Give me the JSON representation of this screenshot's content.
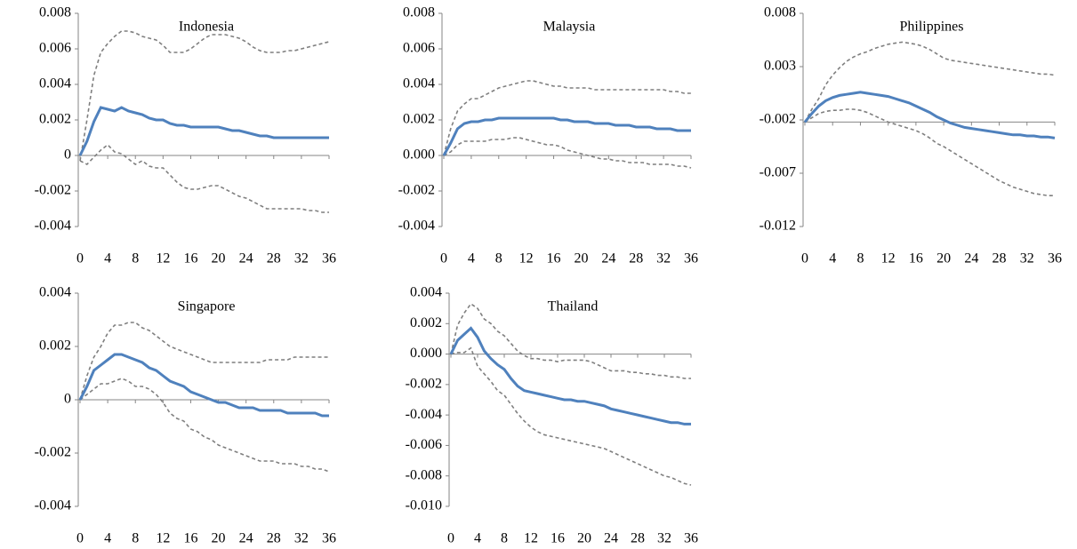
{
  "chart_data": [
    {
      "type": "line",
      "title": "Indonesia",
      "x": [
        0,
        1,
        2,
        3,
        4,
        5,
        6,
        7,
        8,
        9,
        10,
        11,
        12,
        13,
        14,
        15,
        16,
        17,
        18,
        19,
        20,
        21,
        22,
        23,
        24,
        25,
        26,
        27,
        28,
        29,
        30,
        31,
        32,
        33,
        34,
        35,
        36
      ],
      "xlim": [
        0,
        36
      ],
      "xticks": [
        0,
        4,
        8,
        12,
        16,
        20,
        24,
        28,
        32,
        36
      ],
      "ylim": [
        -0.004,
        0.008
      ],
      "yticks": [
        0.008,
        0.006,
        0.004,
        0.002,
        0,
        -0.002,
        -0.004
      ],
      "series": [
        {
          "color": "#7f7f7f",
          "line_style": "dashed",
          "values": [
            -0.0003,
            0.002,
            0.0045,
            0.0058,
            0.0063,
            0.0067,
            0.007,
            0.007,
            0.0069,
            0.0067,
            0.0066,
            0.0065,
            0.0062,
            0.0058,
            0.0058,
            0.0058,
            0.006,
            0.0063,
            0.0066,
            0.0068,
            0.0068,
            0.0068,
            0.0067,
            0.0066,
            0.0064,
            0.0061,
            0.0059,
            0.0058,
            0.0058,
            0.0058,
            0.0059,
            0.0059,
            0.006,
            0.0061,
            0.0062,
            0.0063,
            0.0064
          ]
        },
        {
          "color": "#7f7f7f",
          "line_style": "dashed",
          "values": [
            -0.0003,
            -0.0005,
            -0.0001,
            0.0003,
            0.0006,
            0.0002,
            0.0001,
            -0.0002,
            -0.0005,
            -0.0003,
            -0.0006,
            -0.0007,
            -0.0007,
            -0.0011,
            -0.0015,
            -0.0018,
            -0.0019,
            -0.0019,
            -0.0018,
            -0.0017,
            -0.0017,
            -0.0019,
            -0.0021,
            -0.0023,
            -0.0024,
            -0.0026,
            -0.0028,
            -0.003,
            -0.003,
            -0.003,
            -0.003,
            -0.003,
            -0.003,
            -0.0031,
            -0.0031,
            -0.0032,
            -0.0032
          ]
        },
        {
          "color": "#4f81bd",
          "line_style": "solid",
          "values": [
            0,
            0.0008,
            0.0019,
            0.0027,
            0.0026,
            0.0025,
            0.0027,
            0.0025,
            0.0024,
            0.0023,
            0.0021,
            0.002,
            0.002,
            0.0018,
            0.0017,
            0.0017,
            0.0016,
            0.0016,
            0.0016,
            0.0016,
            0.0016,
            0.0015,
            0.0014,
            0.0014,
            0.0013,
            0.0012,
            0.0011,
            0.0011,
            0.001,
            0.001,
            0.001,
            0.001,
            0.001,
            0.001,
            0.001,
            0.001,
            0.001
          ]
        }
      ]
    },
    {
      "type": "line",
      "title": "Malaysia",
      "x": [
        0,
        1,
        2,
        3,
        4,
        5,
        6,
        7,
        8,
        9,
        10,
        11,
        12,
        13,
        14,
        15,
        16,
        17,
        18,
        19,
        20,
        21,
        22,
        23,
        24,
        25,
        26,
        27,
        28,
        29,
        30,
        31,
        32,
        33,
        34,
        35,
        36
      ],
      "xlim": [
        0,
        36
      ],
      "xticks": [
        0,
        4,
        8,
        12,
        16,
        20,
        24,
        28,
        32,
        36
      ],
      "ylim": [
        -0.004,
        0.008
      ],
      "yticks": [
        0.008,
        0.006,
        0.004,
        0.002,
        {
          "value": 0,
          "label": "0.000"
        },
        -0.002,
        -0.004
      ],
      "series": [
        {
          "color": "#7f7f7f",
          "line_style": "dashed",
          "values": [
            0,
            0.0015,
            0.0025,
            0.0029,
            0.0032,
            0.0032,
            0.0034,
            0.0036,
            0.0038,
            0.0039,
            0.004,
            0.0041,
            0.0042,
            0.0042,
            0.0041,
            0.004,
            0.0039,
            0.0039,
            0.0038,
            0.0038,
            0.0038,
            0.0038,
            0.0037,
            0.0037,
            0.0037,
            0.0037,
            0.0037,
            0.0037,
            0.0037,
            0.0037,
            0.0037,
            0.0037,
            0.0037,
            0.0036,
            0.0036,
            0.0035,
            0.0035
          ]
        },
        {
          "color": "#7f7f7f",
          "line_style": "dashed",
          "values": [
            0,
            0.0002,
            0.0006,
            0.0008,
            0.0008,
            0.0008,
            0.0008,
            0.0009,
            0.0009,
            0.0009,
            0.001,
            0.001,
            0.0009,
            0.0008,
            0.0007,
            0.0006,
            0.0006,
            0.0005,
            0.0003,
            0.0002,
            0.0001,
            0,
            -0.0001,
            -0.0002,
            -0.0002,
            -0.0003,
            -0.0003,
            -0.0004,
            -0.0004,
            -0.0004,
            -0.0005,
            -0.0005,
            -0.0005,
            -0.0005,
            -0.0006,
            -0.0006,
            -0.0007
          ]
        },
        {
          "color": "#4f81bd",
          "line_style": "solid",
          "values": [
            0,
            0.0007,
            0.0015,
            0.0018,
            0.0019,
            0.0019,
            0.002,
            0.002,
            0.0021,
            0.0021,
            0.0021,
            0.0021,
            0.0021,
            0.0021,
            0.0021,
            0.0021,
            0.0021,
            0.002,
            0.002,
            0.0019,
            0.0019,
            0.0019,
            0.0018,
            0.0018,
            0.0018,
            0.0017,
            0.0017,
            0.0017,
            0.0016,
            0.0016,
            0.0016,
            0.0015,
            0.0015,
            0.0015,
            0.0014,
            0.0014,
            0.0014
          ]
        }
      ]
    },
    {
      "type": "line",
      "title": "Philippines",
      "x": [
        0,
        1,
        2,
        3,
        4,
        5,
        6,
        7,
        8,
        9,
        10,
        11,
        12,
        13,
        14,
        15,
        16,
        17,
        18,
        19,
        20,
        21,
        22,
        23,
        24,
        25,
        26,
        27,
        28,
        29,
        30,
        31,
        32,
        33,
        34,
        35,
        36
      ],
      "xlim": [
        0,
        36
      ],
      "xticks": [
        0,
        4,
        8,
        12,
        16,
        20,
        24,
        28,
        32,
        36
      ],
      "ylim": [
        -0.012,
        0.008
      ],
      "yticks": [
        0.008,
        0.003,
        -0.002,
        -0.007,
        -0.012
      ],
      "x_axis_crosses": -0.0022,
      "series": [
        {
          "color": "#7f7f7f",
          "line_style": "dashed",
          "values": [
            -0.0022,
            -0.001,
            0,
            0.0013,
            0.0022,
            0.0029,
            0.0035,
            0.0039,
            0.0042,
            0.0044,
            0.0047,
            0.0049,
            0.0051,
            0.0052,
            0.0053,
            0.0052,
            0.0051,
            0.0049,
            0.0046,
            0.0042,
            0.0038,
            0.0036,
            0.0035,
            0.0034,
            0.0033,
            0.0032,
            0.0031,
            0.003,
            0.0029,
            0.0028,
            0.0027,
            0.0026,
            0.0025,
            0.0024,
            0.0023,
            0.0023,
            0.0022
          ]
        },
        {
          "color": "#7f7f7f",
          "line_style": "dashed",
          "values": [
            -0.0022,
            -0.0018,
            -0.0014,
            -0.0012,
            -0.0011,
            -0.0011,
            -0.001,
            -0.001,
            -0.0011,
            -0.0013,
            -0.0016,
            -0.0019,
            -0.0022,
            -0.0024,
            -0.0026,
            -0.0028,
            -0.003,
            -0.0033,
            -0.0037,
            -0.0042,
            -0.0045,
            -0.0049,
            -0.0053,
            -0.0057,
            -0.0061,
            -0.0065,
            -0.0069,
            -0.0073,
            -0.0077,
            -0.008,
            -0.0083,
            -0.0085,
            -0.0087,
            -0.0089,
            -0.009,
            -0.0091,
            -0.0091
          ]
        },
        {
          "color": "#4f81bd",
          "line_style": "solid",
          "values": [
            -0.0022,
            -0.0014,
            -0.0007,
            -0.0002,
            0.0001,
            0.0003,
            0.0004,
            0.0005,
            0.0006,
            0.0005,
            0.0004,
            0.0003,
            0.0002,
            0,
            -0.0002,
            -0.0004,
            -0.0007,
            -0.001,
            -0.0013,
            -0.0017,
            -0.002,
            -0.0023,
            -0.0025,
            -0.0027,
            -0.0028,
            -0.0029,
            -0.003,
            -0.0031,
            -0.0032,
            -0.0033,
            -0.0034,
            -0.0034,
            -0.0035,
            -0.0035,
            -0.0036,
            -0.0036,
            -0.0037
          ]
        }
      ]
    },
    {
      "type": "line",
      "title": "Singapore",
      "x": [
        0,
        1,
        2,
        3,
        4,
        5,
        6,
        7,
        8,
        9,
        10,
        11,
        12,
        13,
        14,
        15,
        16,
        17,
        18,
        19,
        20,
        21,
        22,
        23,
        24,
        25,
        26,
        27,
        28,
        29,
        30,
        31,
        32,
        33,
        34,
        35,
        36
      ],
      "xlim": [
        0,
        36
      ],
      "xticks": [
        0,
        4,
        8,
        12,
        16,
        20,
        24,
        28,
        32,
        36
      ],
      "ylim": [
        -0.004,
        0.004
      ],
      "yticks": [
        0.004,
        0.002,
        0,
        -0.002,
        -0.004
      ],
      "series": [
        {
          "color": "#7f7f7f",
          "line_style": "dashed",
          "values": [
            0,
            0.0009,
            0.0016,
            0.002,
            0.0025,
            0.0028,
            0.0028,
            0.0029,
            0.0029,
            0.0027,
            0.0026,
            0.0024,
            0.0022,
            0.002,
            0.0019,
            0.0018,
            0.0017,
            0.0016,
            0.0015,
            0.0014,
            0.0014,
            0.0014,
            0.0014,
            0.0014,
            0.0014,
            0.0014,
            0.0014,
            0.0015,
            0.0015,
            0.0015,
            0.0015,
            0.0016,
            0.0016,
            0.0016,
            0.0016,
            0.0016,
            0.0016
          ]
        },
        {
          "color": "#7f7f7f",
          "line_style": "dashed",
          "values": [
            0,
            0.0002,
            0.0004,
            0.0006,
            0.0006,
            0.0007,
            0.0008,
            0.0007,
            0.0005,
            0.0005,
            0.0004,
            0.0002,
            -0.0001,
            -0.0005,
            -0.0007,
            -0.0008,
            -0.0011,
            -0.0012,
            -0.0014,
            -0.0015,
            -0.0017,
            -0.0018,
            -0.0019,
            -0.002,
            -0.0021,
            -0.0022,
            -0.0023,
            -0.0023,
            -0.0023,
            -0.0024,
            -0.0024,
            -0.0024,
            -0.0025,
            -0.0025,
            -0.0026,
            -0.0026,
            -0.0027
          ]
        },
        {
          "color": "#4f81bd",
          "line_style": "solid",
          "values": [
            0,
            0.0005,
            0.0011,
            0.0013,
            0.0015,
            0.0017,
            0.0017,
            0.0016,
            0.0015,
            0.0014,
            0.0012,
            0.0011,
            0.0009,
            0.0007,
            0.0006,
            0.0005,
            0.0003,
            0.0002,
            0.0001,
            0,
            -0.0001,
            -0.0001,
            -0.0002,
            -0.0003,
            -0.0003,
            -0.0003,
            -0.0004,
            -0.0004,
            -0.0004,
            -0.0004,
            -0.0005,
            -0.0005,
            -0.0005,
            -0.0005,
            -0.0005,
            -0.0006,
            -0.0006
          ]
        }
      ]
    },
    {
      "type": "line",
      "title": "Thailand",
      "x": [
        0,
        1,
        2,
        3,
        4,
        5,
        6,
        7,
        8,
        9,
        10,
        11,
        12,
        13,
        14,
        15,
        16,
        17,
        18,
        19,
        20,
        21,
        22,
        23,
        24,
        25,
        26,
        27,
        28,
        29,
        30,
        31,
        32,
        33,
        34,
        35,
        36
      ],
      "xlim": [
        0,
        36
      ],
      "xticks": [
        0,
        4,
        8,
        12,
        16,
        20,
        24,
        28,
        32,
        36
      ],
      "ylim": [
        -0.01,
        0.004
      ],
      "yticks": [
        0.004,
        0.002,
        {
          "value": 0,
          "label": "0.000"
        },
        -0.002,
        -0.004,
        -0.006,
        -0.008,
        {
          "value": -0.01,
          "label": "-0.010"
        }
      ],
      "series": [
        {
          "color": "#7f7f7f",
          "line_style": "dashed",
          "values": [
            0,
            0.0019,
            0.0027,
            0.0033,
            0.003,
            0.0023,
            0.002,
            0.0015,
            0.0012,
            0.0007,
            0.0002,
            -0.0001,
            -0.0003,
            -0.0003,
            -0.0004,
            -0.0004,
            -0.0005,
            -0.0004,
            -0.0004,
            -0.0004,
            -0.0004,
            -0.0005,
            -0.0007,
            -0.0009,
            -0.0011,
            -0.0011,
            -0.0011,
            -0.0012,
            -0.0012,
            -0.0013,
            -0.0013,
            -0.0014,
            -0.0014,
            -0.0015,
            -0.0015,
            -0.0016,
            -0.0016
          ]
        },
        {
          "color": "#7f7f7f",
          "line_style": "dashed",
          "values": [
            0,
            0.0001,
            0.0001,
            0.0004,
            -0.0008,
            -0.0013,
            -0.0018,
            -0.0024,
            -0.0027,
            -0.0033,
            -0.0039,
            -0.0044,
            -0.0048,
            -0.0051,
            -0.0053,
            -0.0054,
            -0.0055,
            -0.0056,
            -0.0057,
            -0.0058,
            -0.0059,
            -0.006,
            -0.0061,
            -0.0062,
            -0.0064,
            -0.0066,
            -0.0068,
            -0.007,
            -0.0072,
            -0.0074,
            -0.0076,
            -0.0078,
            -0.008,
            -0.0081,
            -0.0083,
            -0.0085,
            -0.0086
          ]
        },
        {
          "color": "#4f81bd",
          "line_style": "solid",
          "values": [
            0,
            0.0009,
            0.0013,
            0.0017,
            0.0011,
            0.0002,
            -0.0003,
            -0.0007,
            -0.001,
            -0.0016,
            -0.0021,
            -0.0024,
            -0.0025,
            -0.0026,
            -0.0027,
            -0.0028,
            -0.0029,
            -0.003,
            -0.003,
            -0.0031,
            -0.0031,
            -0.0032,
            -0.0033,
            -0.0034,
            -0.0036,
            -0.0037,
            -0.0038,
            -0.0039,
            -0.004,
            -0.0041,
            -0.0042,
            -0.0043,
            -0.0044,
            -0.0045,
            -0.0045,
            -0.0046,
            -0.0046
          ]
        }
      ]
    }
  ]
}
